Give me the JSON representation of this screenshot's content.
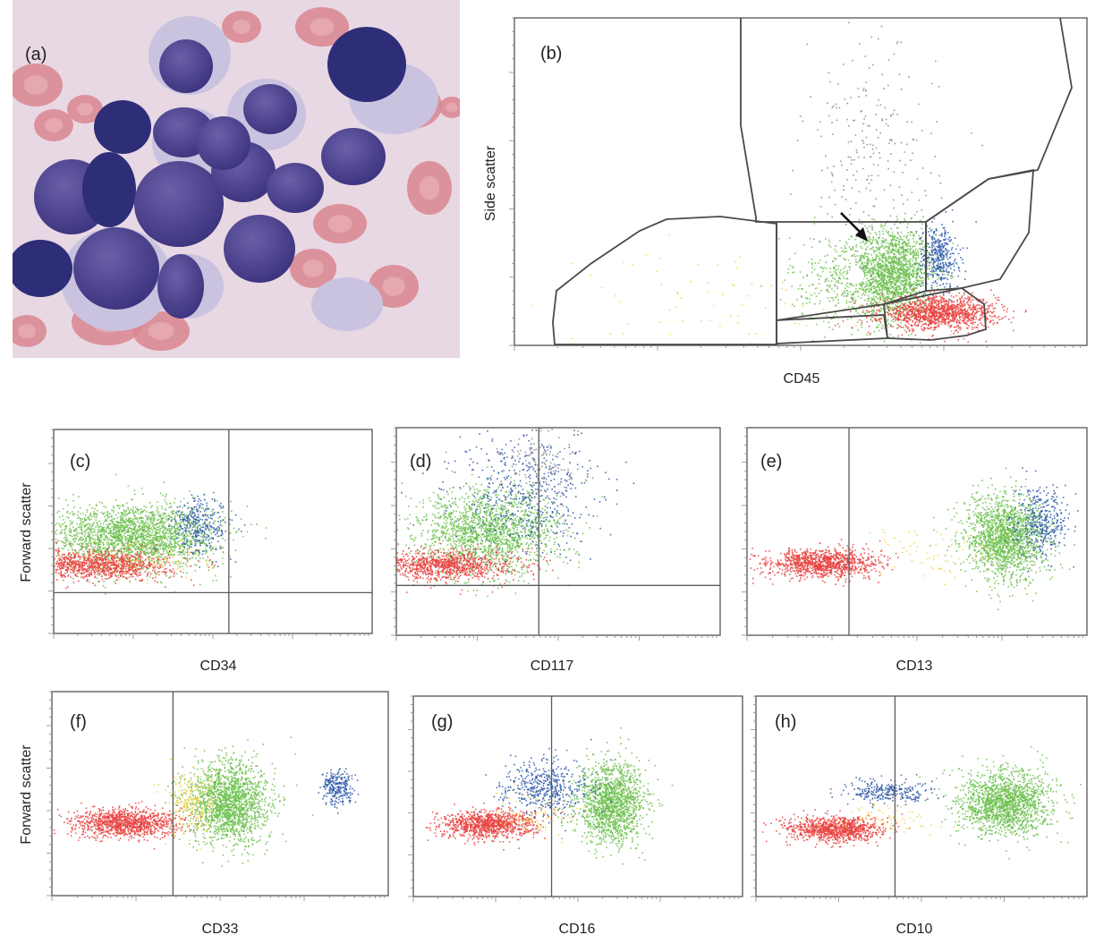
{
  "figure": {
    "panel_labels": [
      "(a)",
      "(b)",
      "(c)",
      "(d)",
      "(e)",
      "(f)",
      "(g)",
      "(h)"
    ],
    "population_colors": {
      "red": "#e8423f",
      "green": "#6cbf4c",
      "blue": "#2f5aa8",
      "yellow": "#f3d34a",
      "grey": "#8a8a8a"
    },
    "micrograph_colors": {
      "background": "#e8d8e4",
      "nucleus": "#4a3f8e",
      "nucleus_dark": "#2e2d78",
      "cytoplasm": "#c9c3e0",
      "rbc": "#d9868f"
    }
  },
  "chart_data": [
    {
      "panel": "(b)",
      "type": "scatter",
      "xlabel": "CD45",
      "ylabel": "Side scatter",
      "xlim": [
        0,
        1
      ],
      "ylim": [
        0,
        1
      ],
      "gates": 6,
      "arrow": "points to green population",
      "clusters": [
        {
          "color": "green",
          "cx": 0.66,
          "cy": 0.22,
          "sx": 0.035,
          "sy": 0.07,
          "n": 1700
        },
        {
          "color": "green",
          "cx": 0.58,
          "cy": 0.2,
          "sx": 0.05,
          "sy": 0.07,
          "n": 350
        },
        {
          "color": "blue",
          "cx": 0.74,
          "cy": 0.27,
          "sx": 0.018,
          "sy": 0.05,
          "n": 380
        },
        {
          "color": "red",
          "cx": 0.74,
          "cy": 0.1,
          "sx": 0.05,
          "sy": 0.025,
          "n": 1300
        },
        {
          "color": "grey",
          "cx": 0.62,
          "cy": 0.55,
          "sx": 0.06,
          "sy": 0.18,
          "n": 260
        },
        {
          "color": "yellow",
          "cx": 0.35,
          "cy": 0.15,
          "sx": 0.14,
          "sy": 0.07,
          "n": 70
        }
      ]
    },
    {
      "panel": "(c)",
      "type": "scatter",
      "xlabel": "CD34",
      "ylabel": "Forward scatter",
      "xlim": [
        0,
        1
      ],
      "ylim": [
        0,
        1
      ],
      "divider_x": 0.55,
      "divider_y": 0.2,
      "clusters": [
        {
          "color": "green",
          "cx": 0.25,
          "cy": 0.48,
          "sx": 0.13,
          "sy": 0.08,
          "n": 2200
        },
        {
          "color": "red",
          "cx": 0.14,
          "cy": 0.34,
          "sx": 0.11,
          "sy": 0.035,
          "n": 1100
        },
        {
          "color": "blue",
          "cx": 0.46,
          "cy": 0.53,
          "sx": 0.045,
          "sy": 0.07,
          "n": 320
        },
        {
          "color": "yellow",
          "cx": 0.28,
          "cy": 0.36,
          "sx": 0.12,
          "sy": 0.05,
          "n": 90
        }
      ]
    },
    {
      "panel": "(d)",
      "type": "scatter",
      "xlabel": "CD117",
      "ylabel": "",
      "xlim": [
        0,
        1
      ],
      "ylim": [
        0,
        1
      ],
      "divider_x": 0.44,
      "divider_y": 0.24,
      "clusters": [
        {
          "color": "green",
          "cx": 0.28,
          "cy": 0.5,
          "sx": 0.11,
          "sy": 0.1,
          "n": 1700
        },
        {
          "color": "red",
          "cx": 0.15,
          "cy": 0.34,
          "sx": 0.11,
          "sy": 0.035,
          "n": 1000
        },
        {
          "color": "blue",
          "cx": 0.4,
          "cy": 0.68,
          "sx": 0.11,
          "sy": 0.14,
          "n": 520
        },
        {
          "color": "grey",
          "cx": 0.45,
          "cy": 0.82,
          "sx": 0.06,
          "sy": 0.08,
          "n": 140
        }
      ]
    },
    {
      "panel": "(e)",
      "type": "scatter",
      "xlabel": "CD13",
      "ylabel": "",
      "xlim": [
        0,
        1
      ],
      "ylim": [
        0,
        1
      ],
      "divider_x": 0.3,
      "clusters": [
        {
          "color": "red",
          "cx": 0.22,
          "cy": 0.35,
          "sx": 0.08,
          "sy": 0.035,
          "n": 1100
        },
        {
          "color": "green",
          "cx": 0.76,
          "cy": 0.47,
          "sx": 0.06,
          "sy": 0.1,
          "n": 1700
        },
        {
          "color": "blue",
          "cx": 0.86,
          "cy": 0.55,
          "sx": 0.04,
          "sy": 0.08,
          "n": 380
        },
        {
          "color": "yellow",
          "cx": 0.56,
          "cy": 0.4,
          "sx": 0.08,
          "sy": 0.06,
          "n": 70
        }
      ]
    },
    {
      "panel": "(f)",
      "type": "scatter",
      "xlabel": "CD33",
      "ylabel": "Forward scatter",
      "xlim": [
        0,
        1
      ],
      "ylim": [
        0,
        1
      ],
      "divider_x": 0.36,
      "clusters": [
        {
          "color": "red",
          "cx": 0.22,
          "cy": 0.36,
          "sx": 0.08,
          "sy": 0.035,
          "n": 1100
        },
        {
          "color": "green",
          "cx": 0.52,
          "cy": 0.46,
          "sx": 0.06,
          "sy": 0.1,
          "n": 1800
        },
        {
          "color": "yellow",
          "cx": 0.41,
          "cy": 0.46,
          "sx": 0.035,
          "sy": 0.08,
          "n": 220
        },
        {
          "color": "blue",
          "cx": 0.85,
          "cy": 0.53,
          "sx": 0.025,
          "sy": 0.045,
          "n": 260
        }
      ]
    },
    {
      "panel": "(g)",
      "type": "scatter",
      "xlabel": "CD16",
      "ylabel": "",
      "xlim": [
        0,
        1
      ],
      "ylim": [
        0,
        1
      ],
      "divider_x": 0.42,
      "clusters": [
        {
          "color": "red",
          "cx": 0.22,
          "cy": 0.36,
          "sx": 0.07,
          "sy": 0.035,
          "n": 1000
        },
        {
          "color": "green",
          "cx": 0.6,
          "cy": 0.47,
          "sx": 0.05,
          "sy": 0.1,
          "n": 1500
        },
        {
          "color": "blue",
          "cx": 0.4,
          "cy": 0.55,
          "sx": 0.07,
          "sy": 0.07,
          "n": 480
        },
        {
          "color": "yellow",
          "cx": 0.38,
          "cy": 0.4,
          "sx": 0.08,
          "sy": 0.05,
          "n": 90
        }
      ]
    },
    {
      "panel": "(h)",
      "type": "scatter",
      "xlabel": "CD10",
      "ylabel": "",
      "xlim": [
        0,
        1
      ],
      "ylim": [
        0,
        1
      ],
      "divider_x": 0.42,
      "clusters": [
        {
          "color": "red",
          "cx": 0.24,
          "cy": 0.34,
          "sx": 0.07,
          "sy": 0.03,
          "n": 1000
        },
        {
          "color": "green",
          "cx": 0.75,
          "cy": 0.47,
          "sx": 0.07,
          "sy": 0.08,
          "n": 1600
        },
        {
          "color": "blue",
          "cx": 0.4,
          "cy": 0.53,
          "sx": 0.06,
          "sy": 0.035,
          "n": 280
        },
        {
          "color": "yellow",
          "cx": 0.38,
          "cy": 0.38,
          "sx": 0.07,
          "sy": 0.04,
          "n": 70
        }
      ]
    }
  ]
}
